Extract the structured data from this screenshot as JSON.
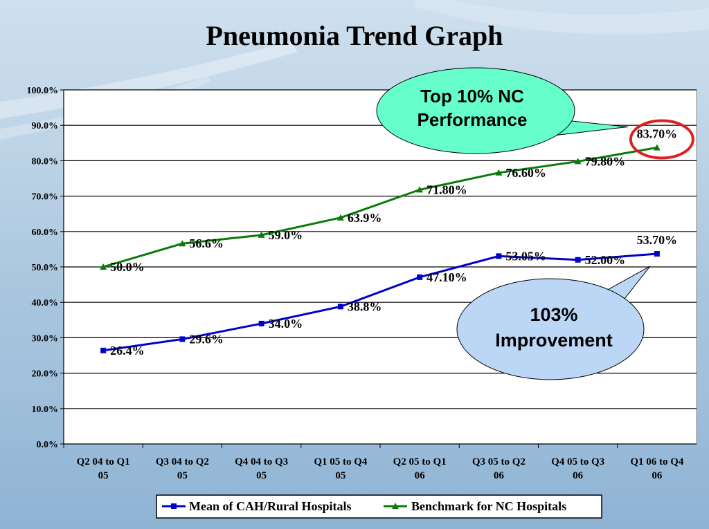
{
  "slide": {
    "title": "Pneumonia Trend Graph"
  },
  "chart_data": {
    "type": "line",
    "title": "Pneumonia Trend Graph",
    "categories": [
      [
        "Q2 04 to Q1",
        "05"
      ],
      [
        "Q3 04 to Q2",
        "05"
      ],
      [
        "Q4 04 to Q3",
        "05"
      ],
      [
        "Q1 05 to Q4",
        "05"
      ],
      [
        "Q2 05 to Q1",
        "06"
      ],
      [
        "Q3 05 to Q2",
        "06"
      ],
      [
        "Q4 05 to Q3",
        "06"
      ],
      [
        "Q1 06 to Q4",
        "06"
      ]
    ],
    "ylim": [
      0,
      100
    ],
    "yticks": [
      "0.0%",
      "10.0%",
      "20.0%",
      "30.0%",
      "40.0%",
      "50.0%",
      "60.0%",
      "70.0%",
      "80.0%",
      "90.0%",
      "100.0%"
    ],
    "grid": true,
    "legend_position": "bottom",
    "series": [
      {
        "name": "Mean of CAH/Rural Hospitals",
        "color": "#0000cc",
        "marker": "square",
        "values": [
          26.4,
          29.6,
          34.0,
          38.8,
          47.1,
          53.05,
          52.0,
          53.7
        ],
        "labels": [
          "26.4%",
          "29.6%",
          "34.0%",
          "38.8%",
          "47.10%",
          "53.05%",
          "52.00%",
          "53.70%"
        ]
      },
      {
        "name": "Benchmark for NC Hospitals",
        "color": "#0a7a0a",
        "marker": "triangle",
        "values": [
          50.0,
          56.6,
          59.0,
          63.9,
          71.8,
          76.6,
          79.8,
          83.7
        ],
        "labels": [
          "50.0%",
          "56.6%",
          "59.0%",
          "63.9%",
          "71.80%",
          "76.60%",
          "79.80%",
          "83.70%"
        ]
      }
    ],
    "annotations": [
      {
        "text": [
          "Top 10% NC",
          "Performance"
        ],
        "color": "#66ffcc"
      },
      {
        "text": [
          "103%",
          "Improvement"
        ],
        "color": "#bcd7f5"
      }
    ],
    "highlight_color": "#e02020"
  }
}
